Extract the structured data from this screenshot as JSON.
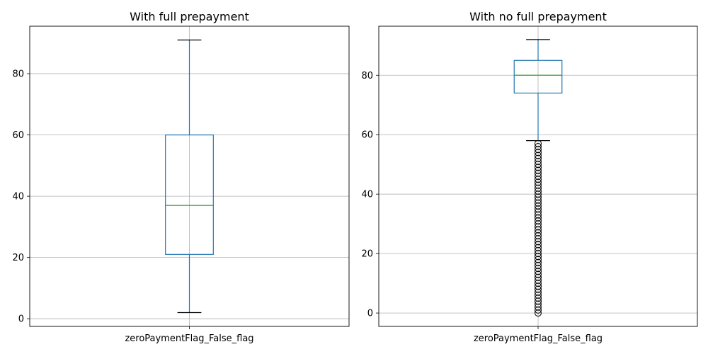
{
  "chart_data": [
    {
      "type": "box",
      "title": "With full prepayment",
      "category": "zeroPaymentFlag_False_flag",
      "ylim": [
        -2.5,
        95.5
      ],
      "yticks": [
        0,
        20,
        40,
        60,
        80
      ],
      "grid": true,
      "box": {
        "whisker_low": 2,
        "q1": 21,
        "median": 37,
        "q3": 60,
        "whisker_high": 91
      },
      "outliers": []
    },
    {
      "type": "box",
      "title": "With no full prepayment",
      "category": "zeroPaymentFlag_False_flag",
      "ylim": [
        -4.5,
        96.5
      ],
      "yticks": [
        0,
        20,
        40,
        60,
        80
      ],
      "grid": true,
      "box": {
        "whisker_low": 58,
        "q1": 74,
        "median": 80,
        "q3": 85,
        "whisker_high": 92
      },
      "outliers": [
        0,
        1,
        2,
        3,
        4,
        5,
        6,
        7,
        8,
        9,
        10,
        11,
        12,
        13,
        14,
        15,
        16,
        17,
        18,
        19,
        20,
        21,
        22,
        23,
        24,
        25,
        26,
        27,
        28,
        29,
        30,
        31,
        32,
        33,
        34,
        35,
        36,
        37,
        38,
        39,
        40,
        41,
        42,
        43,
        44,
        45,
        46,
        47,
        48,
        49,
        50,
        51,
        52,
        53,
        54,
        55,
        56,
        57
      ]
    }
  ],
  "colors": {
    "box": "#1f77b4",
    "median": "#2ca02c",
    "whisker_cap": "#000000",
    "grid": "#b0b0b0",
    "outlier": "#000000"
  }
}
